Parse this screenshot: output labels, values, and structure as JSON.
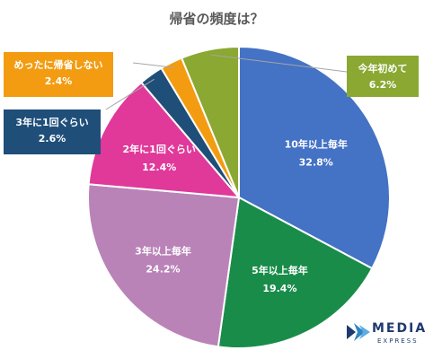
{
  "chart_data": {
    "type": "pie",
    "title": "帰省の頻度は？",
    "slices": [
      {
        "label": "10年以上毎年",
        "value": 32.8,
        "value_text": "32.8%",
        "color": "#4472c4"
      },
      {
        "label": "5年以上毎年",
        "value": 19.4,
        "value_text": "19.4%",
        "color": "#1a8c4a"
      },
      {
        "label": "3年以上毎年",
        "value": 24.2,
        "value_text": "24.2%",
        "color": "#b983b8"
      },
      {
        "label": "2年に1回ぐらい",
        "value": 12.4,
        "value_text": "12.4%",
        "color": "#e0399a"
      },
      {
        "label": "3年に1回ぐらい",
        "value": 2.6,
        "value_text": "2.6%",
        "color": "#1f4e79"
      },
      {
        "label": "めったに帰省しない",
        "value": 2.4,
        "value_text": "2.4%",
        "color": "#f39c12"
      },
      {
        "label": "今年初めて",
        "value": 6.2,
        "value_text": "6.2%",
        "color": "#8aa832"
      }
    ]
  },
  "logo": {
    "main": "MEDIA",
    "sub": "EXPRESS"
  }
}
